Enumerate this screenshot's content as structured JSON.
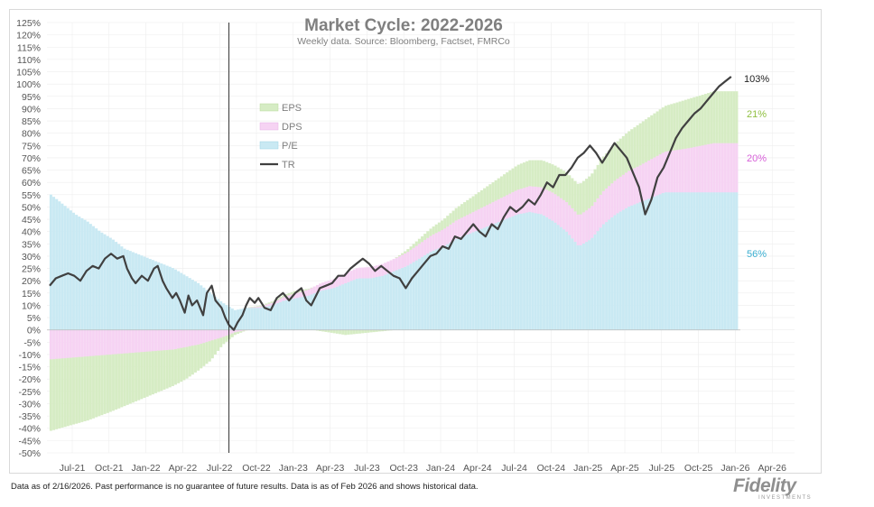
{
  "chart_data": {
    "type": "bar",
    "title": "Market Cycle: 2022-2026",
    "subtitle": "Weekly data.  Source: Bloomberg, Factset, FMRCo",
    "ylim": [
      -50,
      125
    ],
    "y_ticks": [
      "125%",
      "120%",
      "115%",
      "110%",
      "105%",
      "100%",
      "95%",
      "90%",
      "85%",
      "80%",
      "75%",
      "70%",
      "65%",
      "60%",
      "55%",
      "50%",
      "45%",
      "40%",
      "35%",
      "30%",
      "25%",
      "20%",
      "15%",
      "10%",
      "5%",
      "0%",
      "-5%",
      "-10%",
      "-15%",
      "-20%",
      "-25%",
      "-30%",
      "-35%",
      "-40%",
      "-45%",
      "-50%"
    ],
    "x_ticks": [
      "Jul-21",
      "Oct-21",
      "Jan-22",
      "Apr-22",
      "Jul-22",
      "Oct-22",
      "Jan-23",
      "Apr-23",
      "Jul-23",
      "Oct-23",
      "Jan-24",
      "Apr-24",
      "Jul-24",
      "Oct-24",
      "Jan-25",
      "Apr-25",
      "Jul-25",
      "Oct-25",
      "Jan-26",
      "Apr-26"
    ],
    "cycle_start": "Sep-22",
    "legend": [
      "EPS",
      "DPS",
      "P/E",
      "TR"
    ],
    "legend_position": "upper-left",
    "end_labels": {
      "tr": "103%",
      "eps": "21%",
      "dps": "20%",
      "pe": "56%"
    },
    "colors": {
      "eps": "#d6ecc4",
      "dps": "#f6d3f3",
      "pe": "#c9e9f3",
      "tr": "#404040",
      "eps_text": "#8fbf40",
      "dps_text": "#d65fd8",
      "pe_text": "#3aaed0"
    },
    "series_note_x": "months since Jul-21",
    "series": [
      {
        "name": "P/E",
        "points": [
          [
            0,
            55
          ],
          [
            1,
            51
          ],
          [
            2,
            47
          ],
          [
            3,
            44
          ],
          [
            4,
            40
          ],
          [
            5,
            37
          ],
          [
            6,
            33
          ],
          [
            7,
            31
          ],
          [
            8,
            29
          ],
          [
            9,
            27
          ],
          [
            10,
            25
          ],
          [
            11,
            22
          ],
          [
            12,
            19
          ],
          [
            13,
            15
          ],
          [
            14,
            11
          ],
          [
            15,
            8
          ],
          [
            16,
            9
          ],
          [
            17,
            9
          ],
          [
            18,
            10
          ],
          [
            19,
            12
          ],
          [
            20,
            13
          ],
          [
            21,
            14
          ],
          [
            22,
            16
          ],
          [
            23,
            17
          ],
          [
            24,
            19
          ],
          [
            25,
            21
          ],
          [
            26,
            21
          ],
          [
            27,
            22
          ],
          [
            28,
            24
          ],
          [
            29,
            26
          ],
          [
            30,
            29
          ],
          [
            31,
            32
          ],
          [
            32,
            34
          ],
          [
            33,
            37
          ],
          [
            34,
            39
          ],
          [
            35,
            41
          ],
          [
            36,
            43
          ],
          [
            37,
            45
          ],
          [
            38,
            47
          ],
          [
            39,
            48
          ],
          [
            40,
            47
          ],
          [
            41,
            44
          ],
          [
            42,
            40
          ],
          [
            43,
            34
          ],
          [
            44,
            37
          ],
          [
            45,
            43
          ],
          [
            46,
            47
          ],
          [
            47,
            50
          ],
          [
            48,
            52
          ],
          [
            49,
            54
          ],
          [
            50,
            56
          ],
          [
            51,
            56
          ],
          [
            52,
            56
          ],
          [
            53,
            56
          ],
          [
            54,
            56
          ]
        ]
      },
      {
        "name": "DPS",
        "points": [
          [
            0,
            -12
          ],
          [
            5,
            -10
          ],
          [
            10,
            -8
          ],
          [
            12,
            -6
          ],
          [
            14,
            -3
          ],
          [
            15,
            -1
          ],
          [
            16,
            0
          ],
          [
            20,
            2
          ],
          [
            24,
            4
          ],
          [
            28,
            5
          ],
          [
            32,
            7
          ],
          [
            36,
            9
          ],
          [
            40,
            11
          ],
          [
            44,
            13
          ],
          [
            48,
            15
          ],
          [
            52,
            18
          ],
          [
            54,
            20
          ]
        ]
      },
      {
        "name": "EPS",
        "points": [
          [
            0,
            -29
          ],
          [
            1,
            -28
          ],
          [
            3,
            -26
          ],
          [
            5,
            -23
          ],
          [
            8,
            -18
          ],
          [
            11,
            -13
          ],
          [
            13,
            -8
          ],
          [
            14,
            -3
          ],
          [
            15,
            -1
          ],
          [
            16,
            0
          ],
          [
            20,
            1
          ],
          [
            24,
            -2
          ],
          [
            26,
            -1
          ],
          [
            28,
            0
          ],
          [
            30,
            2
          ],
          [
            32,
            4
          ],
          [
            34,
            6
          ],
          [
            36,
            8
          ],
          [
            38,
            10
          ],
          [
            40,
            11
          ],
          [
            44,
            13
          ],
          [
            48,
            17
          ],
          [
            52,
            20
          ],
          [
            54,
            21
          ]
        ]
      },
      {
        "name": "TR",
        "points": [
          [
            0,
            18
          ],
          [
            0.5,
            21
          ],
          [
            1,
            22
          ],
          [
            1.5,
            23
          ],
          [
            2,
            22
          ],
          [
            2.5,
            20
          ],
          [
            3,
            24
          ],
          [
            3.5,
            26
          ],
          [
            4,
            25
          ],
          [
            4.5,
            29
          ],
          [
            5,
            31
          ],
          [
            5.5,
            29
          ],
          [
            6,
            30
          ],
          [
            6.3,
            25
          ],
          [
            6.7,
            21
          ],
          [
            7,
            19
          ],
          [
            7.5,
            22
          ],
          [
            8,
            20
          ],
          [
            8.5,
            25
          ],
          [
            8.8,
            26
          ],
          [
            9.2,
            20
          ],
          [
            9.5,
            17
          ],
          [
            10,
            13
          ],
          [
            10.3,
            15
          ],
          [
            10.6,
            12
          ],
          [
            11,
            7
          ],
          [
            11.3,
            14
          ],
          [
            11.6,
            10
          ],
          [
            12,
            12
          ],
          [
            12.5,
            6
          ],
          [
            12.8,
            15
          ],
          [
            13.2,
            18
          ],
          [
            13.5,
            12
          ],
          [
            14,
            9
          ],
          [
            14.3,
            5
          ],
          [
            14.6,
            2
          ],
          [
            15,
            0
          ],
          [
            15.3,
            3
          ],
          [
            15.7,
            6
          ],
          [
            16,
            10
          ],
          [
            16.3,
            13
          ],
          [
            16.7,
            11
          ],
          [
            17,
            13
          ],
          [
            17.5,
            9
          ],
          [
            18,
            8
          ],
          [
            18.5,
            13
          ],
          [
            19,
            15
          ],
          [
            19.5,
            12
          ],
          [
            20,
            15
          ],
          [
            20.5,
            17
          ],
          [
            20.9,
            12
          ],
          [
            21.3,
            10
          ],
          [
            21.7,
            14
          ],
          [
            22,
            17
          ],
          [
            22.5,
            18
          ],
          [
            23,
            19
          ],
          [
            23.5,
            22
          ],
          [
            24,
            22
          ],
          [
            24.5,
            25
          ],
          [
            25,
            27
          ],
          [
            25.5,
            29
          ],
          [
            26,
            27
          ],
          [
            26.5,
            24
          ],
          [
            27,
            26
          ],
          [
            27.5,
            24
          ],
          [
            28,
            22
          ],
          [
            28.5,
            21
          ],
          [
            29,
            17
          ],
          [
            29.5,
            21
          ],
          [
            30,
            24
          ],
          [
            30.5,
            27
          ],
          [
            31,
            30
          ],
          [
            31.5,
            31
          ],
          [
            32,
            34
          ],
          [
            32.5,
            33
          ],
          [
            33,
            38
          ],
          [
            33.5,
            37
          ],
          [
            34,
            40
          ],
          [
            34.5,
            43
          ],
          [
            35,
            40
          ],
          [
            35.5,
            38
          ],
          [
            36,
            43
          ],
          [
            36.5,
            41
          ],
          [
            37,
            46
          ],
          [
            37.5,
            50
          ],
          [
            38,
            48
          ],
          [
            38.5,
            50
          ],
          [
            39,
            53
          ],
          [
            39.5,
            51
          ],
          [
            40,
            55
          ],
          [
            40.5,
            60
          ],
          [
            41,
            58
          ],
          [
            41.5,
            63
          ],
          [
            42,
            63
          ],
          [
            42.5,
            66
          ],
          [
            43,
            70
          ],
          [
            43.5,
            72
          ],
          [
            44,
            75
          ],
          [
            44.5,
            72
          ],
          [
            45,
            68
          ],
          [
            45.5,
            72
          ],
          [
            46,
            76
          ],
          [
            46.5,
            73
          ],
          [
            47,
            70
          ],
          [
            47.5,
            64
          ],
          [
            48,
            58
          ],
          [
            48.5,
            47
          ],
          [
            49,
            53
          ],
          [
            49.5,
            62
          ],
          [
            50,
            66
          ],
          [
            50.5,
            72
          ],
          [
            51,
            78
          ],
          [
            51.5,
            82
          ],
          [
            52,
            85
          ],
          [
            52.5,
            88
          ],
          [
            53,
            90
          ],
          [
            53.5,
            93
          ],
          [
            54,
            96
          ],
          [
            54.5,
            99
          ],
          [
            55,
            101
          ],
          [
            55.5,
            103
          ]
        ]
      }
    ]
  },
  "footer": {
    "note": "Data as of 2/16/2026. Past performance is no guarantee of future results. Data is as of Feb 2026 and shows historical data.",
    "logo": "Fidelity",
    "logo_sub": "INVESTMENTS"
  }
}
